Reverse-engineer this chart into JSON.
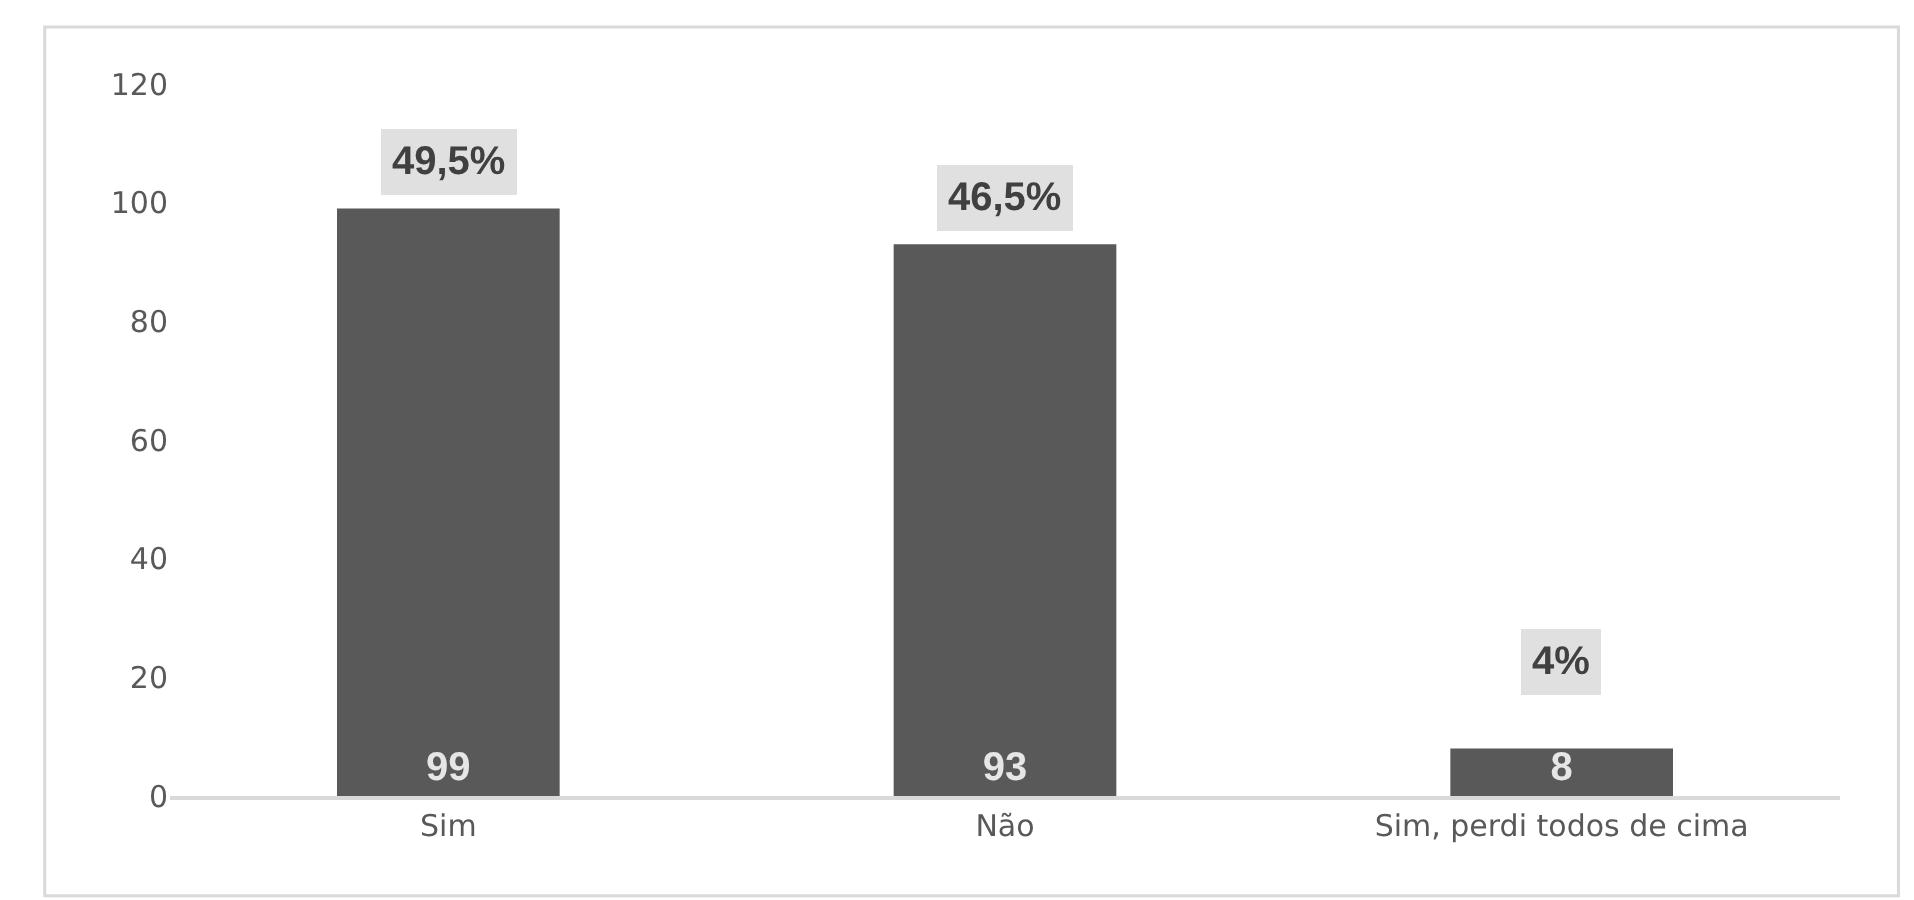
{
  "chart_data": {
    "type": "bar",
    "categories": [
      "Sim",
      "Não",
      "Sim, perdi todos de cima"
    ],
    "values": [
      99,
      93,
      8
    ],
    "color": "#595959",
    "data_labels": true,
    "ylim": [
      0,
      120
    ],
    "yticks": [
      0,
      20,
      40,
      60,
      80,
      100,
      120
    ],
    "grid": false,
    "annotations": [
      {
        "text": "49,5%",
        "x": "Sim",
        "y": 99
      },
      {
        "text": "46,5%",
        "x": "Não",
        "y": 93
      },
      {
        "text": "4%",
        "x": "Sim, perdi todos de cima",
        "y": 8
      }
    ]
  }
}
